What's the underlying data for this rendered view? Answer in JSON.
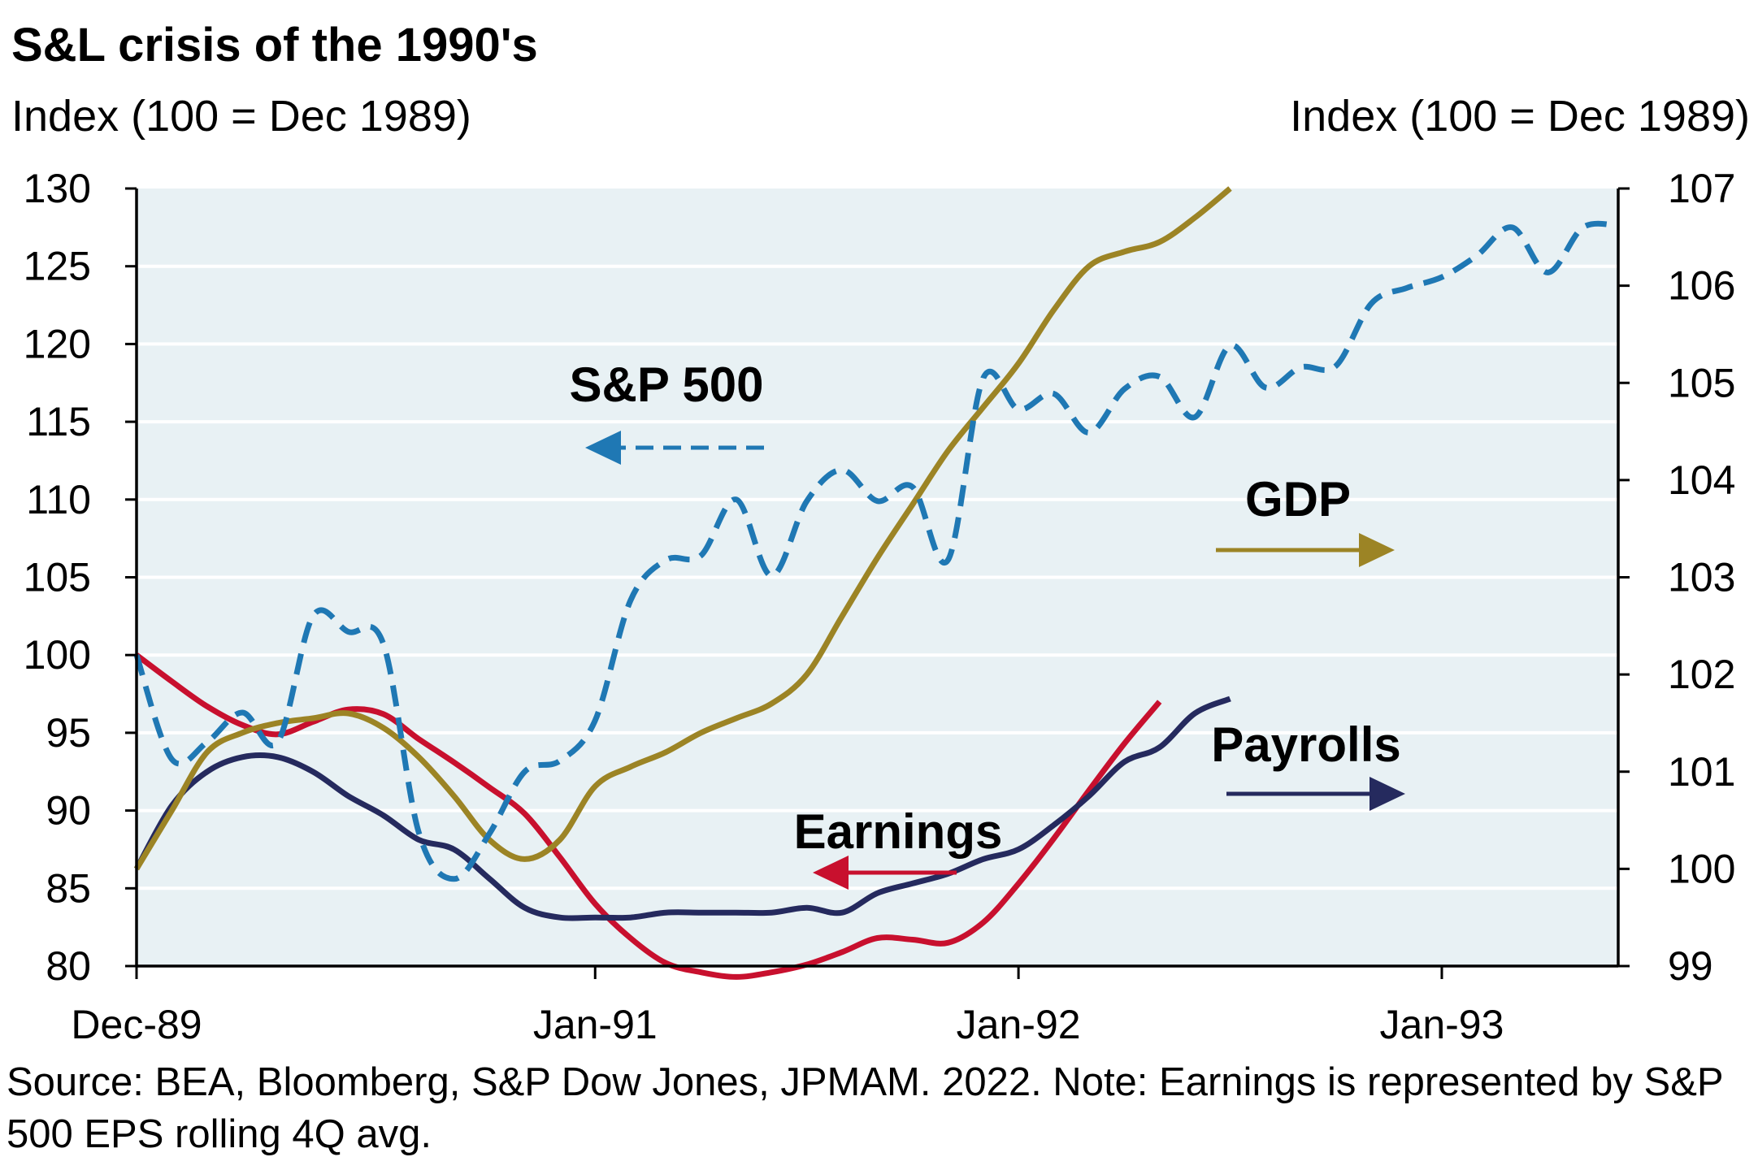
{
  "chart_data": {
    "type": "line",
    "title": "S&L crisis of the 1990's",
    "ylabel_left": "Index (100 = Dec 1989)",
    "ylabel_right": "Index (100 = Dec 1989)",
    "ylim_left": [
      80,
      130
    ],
    "ylim_right": [
      99,
      107
    ],
    "yticks_left": [
      "130",
      "125",
      "120",
      "115",
      "110",
      "105",
      "100",
      "95",
      "90",
      "85",
      "80"
    ],
    "yticks_right": [
      "107",
      "106",
      "105",
      "104",
      "103",
      "102",
      "101",
      "100",
      "99"
    ],
    "x_tick_labels": [
      {
        "label": "Dec-89",
        "month": 0
      },
      {
        "label": "Jan-91",
        "month": 13
      },
      {
        "label": "Jan-92",
        "month": 25
      },
      {
        "label": "Jan-93",
        "month": 37
      }
    ],
    "x_months_range": [
      0,
      42
    ],
    "grid": true,
    "series": [
      {
        "name": "S&P 500",
        "axis": "left",
        "color": "#1f78b4",
        "style": "dashed",
        "values": [
          [
            0,
            100
          ],
          [
            1,
            93.3
          ],
          [
            2,
            94.4
          ],
          [
            3,
            96.3
          ],
          [
            4,
            94.4
          ],
          [
            5,
            102.5
          ],
          [
            6,
            101.5
          ],
          [
            7,
            100.7
          ],
          [
            8,
            88.6
          ],
          [
            9,
            85.6
          ],
          [
            10,
            88.5
          ],
          [
            11,
            92.5
          ],
          [
            12,
            93.2
          ],
          [
            13,
            95.8
          ],
          [
            14,
            103.5
          ],
          [
            15,
            106.1
          ],
          [
            16,
            106.4
          ],
          [
            17,
            110
          ],
          [
            18,
            105.1
          ],
          [
            19,
            109.9
          ],
          [
            20,
            111.9
          ],
          [
            21,
            109.9
          ],
          [
            22,
            110.8
          ],
          [
            23,
            106.1
          ],
          [
            24,
            117.8
          ],
          [
            25,
            115.8
          ],
          [
            26,
            116.8
          ],
          [
            27,
            114.3
          ],
          [
            28,
            117.1
          ],
          [
            29,
            117.9
          ],
          [
            30,
            115.3
          ],
          [
            31,
            119.9
          ],
          [
            32,
            117.2
          ],
          [
            33,
            118.5
          ],
          [
            34,
            118.6
          ],
          [
            35,
            122.6
          ],
          [
            36,
            123.6
          ],
          [
            37,
            124.3
          ],
          [
            38,
            125.7
          ],
          [
            39,
            127.5
          ],
          [
            40,
            124.6
          ],
          [
            41,
            127.5
          ],
          [
            42,
            127.6
          ]
        ]
      },
      {
        "name": "GDP",
        "axis": "right",
        "color": "#9c8425",
        "style": "solid",
        "values": [
          [
            0,
            100
          ],
          [
            1,
            100.6
          ],
          [
            2,
            101.2
          ],
          [
            3,
            101.4
          ],
          [
            4,
            101.5
          ],
          [
            5,
            101.55
          ],
          [
            6,
            101.6
          ],
          [
            7,
            101.45
          ],
          [
            8,
            101.15
          ],
          [
            9,
            100.75
          ],
          [
            10,
            100.3
          ],
          [
            11,
            100.1
          ],
          [
            12,
            100.3
          ],
          [
            13,
            100.85
          ],
          [
            14,
            101.05
          ],
          [
            15,
            101.2
          ],
          [
            16,
            101.4
          ],
          [
            17,
            101.55
          ],
          [
            18,
            101.7
          ],
          [
            19,
            102.0
          ],
          [
            20,
            102.6
          ],
          [
            21,
            103.2
          ],
          [
            22,
            103.75
          ],
          [
            23,
            104.3
          ],
          [
            24,
            104.75
          ],
          [
            25,
            105.2
          ],
          [
            26,
            105.75
          ],
          [
            27,
            106.2
          ],
          [
            28,
            106.35
          ],
          [
            29,
            106.45
          ],
          [
            30,
            106.7
          ],
          [
            31,
            107.0
          ]
        ]
      },
      {
        "name": "Earnings",
        "axis": "left",
        "color": "#c8102e",
        "style": "solid",
        "values": [
          [
            0,
            100
          ],
          [
            1,
            98.3
          ],
          [
            2,
            96.7
          ],
          [
            3,
            95.5
          ],
          [
            4,
            94.9
          ],
          [
            5,
            95.7
          ],
          [
            6,
            96.5
          ],
          [
            7,
            96.2
          ],
          [
            8,
            94.6
          ],
          [
            9,
            93.1
          ],
          [
            10,
            91.5
          ],
          [
            11,
            89.8
          ],
          [
            12,
            87
          ],
          [
            13,
            84
          ],
          [
            14,
            81.8
          ],
          [
            15,
            80.2
          ],
          [
            16,
            79.6
          ],
          [
            17,
            79.3
          ],
          [
            18,
            79.6
          ],
          [
            19,
            80.1
          ],
          [
            20,
            80.9
          ],
          [
            21,
            81.8
          ],
          [
            22,
            81.7
          ],
          [
            23,
            81.5
          ],
          [
            24,
            82.8
          ],
          [
            25,
            85.3
          ],
          [
            26,
            88.2
          ],
          [
            27,
            91.3
          ],
          [
            28,
            94.3
          ],
          [
            29,
            97
          ]
        ]
      },
      {
        "name": "Payrolls",
        "axis": "right",
        "color": "#252a5e",
        "style": "solid",
        "values": [
          [
            0,
            100
          ],
          [
            1,
            100.65
          ],
          [
            2,
            101
          ],
          [
            3,
            101.15
          ],
          [
            4,
            101.15
          ],
          [
            5,
            101
          ],
          [
            6,
            100.75
          ],
          [
            7,
            100.55
          ],
          [
            8,
            100.3
          ],
          [
            9,
            100.2
          ],
          [
            10,
            99.9
          ],
          [
            11,
            99.6
          ],
          [
            12,
            99.5
          ],
          [
            13,
            99.5
          ],
          [
            14,
            99.5
          ],
          [
            15,
            99.55
          ],
          [
            16,
            99.55
          ],
          [
            17,
            99.55
          ],
          [
            18,
            99.55
          ],
          [
            19,
            99.6
          ],
          [
            20,
            99.55
          ],
          [
            21,
            99.75
          ],
          [
            22,
            99.85
          ],
          [
            23,
            99.95
          ],
          [
            24,
            100.1
          ],
          [
            25,
            100.2
          ],
          [
            26,
            100.45
          ],
          [
            27,
            100.75
          ],
          [
            28,
            101.1
          ],
          [
            29,
            101.25
          ],
          [
            30,
            101.6
          ],
          [
            31,
            101.75
          ]
        ]
      }
    ],
    "annotations": [
      {
        "text": "S&P 500",
        "arrow": "left"
      },
      {
        "text": "GDP",
        "arrow": "right"
      },
      {
        "text": "Payrolls",
        "arrow": "right"
      },
      {
        "text": "Earnings",
        "arrow": "left"
      }
    ],
    "source": "Source: BEA, Bloomberg, S&P Dow Jones, JPMAM. 2022. Note: Earnings is represented by S&P 500 EPS rolling 4Q avg."
  }
}
